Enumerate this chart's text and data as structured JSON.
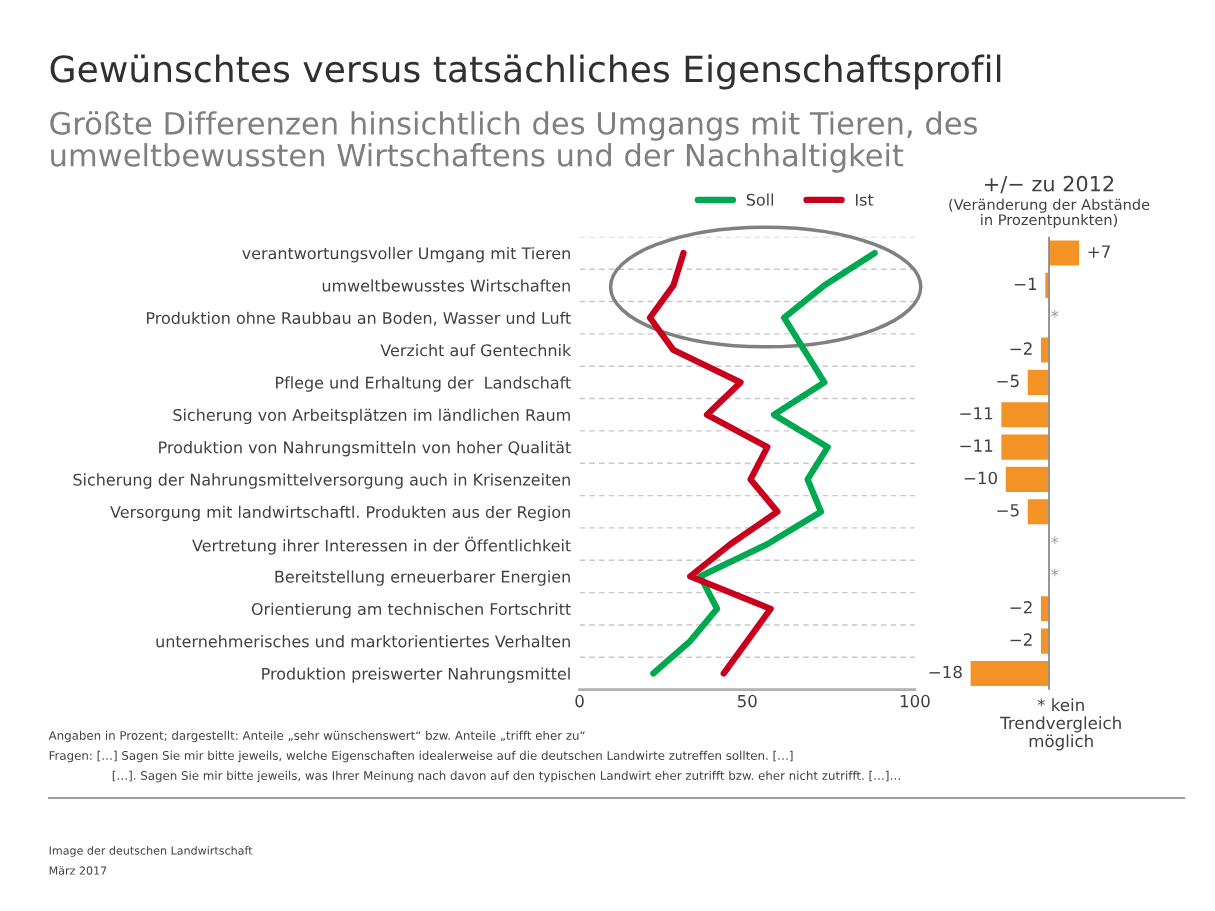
{
  "chart_data": [
    {
      "type": "line",
      "orientation": "horizontal",
      "title": "Gewünschtes versus tatsächliches Eigenschaftsprofil",
      "subtitle": "Größte Differenzen hinsichtlich des Umgangs mit Tieren, des umweltbewussten Wirtschaftens und der Nachhaltigkeit",
      "categories": [
        "verantwortungsvoller Umgang mit Tieren",
        "umweltbewusstes Wirtschaften",
        "Produktion ohne Raubbau an Boden, Wasser und Luft",
        "Verzicht auf Gentechnik",
        "Pflege und Erhaltung der  Landschaft",
        "Sicherung von Arbeitsplätzen im ländlichen Raum",
        "Produktion von Nahrungsmitteln von hoher Qualität",
        "Sicherung der Nahrungsmittelversorgung auch in Krisenzeiten",
        "Versorgung mit landwirtschaftl. Produkten aus der Region",
        "Vertretung ihrer Interessen in der Öffentlichkeit",
        "Bereitstellung erneuerbarer Energien",
        "Orientierung am technischen Fortschritt",
        "unternehmerisches und marktorientiertes Verhalten",
        "Produktion preiswerter Nahrungsmittel"
      ],
      "series": [
        {
          "name": "Soll",
          "color": "#00a94f",
          "values": [
            88,
            73,
            61,
            67,
            73,
            58,
            74,
            68,
            72,
            56,
            36,
            41,
            33,
            22
          ]
        },
        {
          "name": "Ist",
          "color": "#c8001e",
          "values": [
            31,
            28,
            21,
            28,
            48,
            38,
            56,
            51,
            59,
            45,
            33,
            57,
            50,
            43
          ]
        }
      ],
      "xlim": [
        0,
        100
      ],
      "xticks": [
        0,
        50,
        100
      ],
      "grid": "y",
      "legend": "top",
      "annotations": [
        "Angaben in Prozent; dargestellt: Anteile „sehr wünschenswert“ bzw. Anteile „trifft eher zu“",
        "Fragen: […] Sagen Sie mir bitte jeweils, welche Eigenschaften idealerweise auf die deutschen Landwirte zutreffen sollten. […]",
        "[…]. Sagen Sie mir bitte jeweils, was Ihrer Meinung nach davon auf den typischen Landwirt eher zutrifft bzw. eher nicht zutrifft. […]…",
        "Image der deutschen Landwirtschaft",
        "März 2017"
      ]
    },
    {
      "type": "bar",
      "orientation": "horizontal",
      "title": "+/− zu 2012",
      "subtitle": "(Veränderung der Abstände\nin Prozentpunkten)",
      "categories": [
        null,
        null,
        null,
        null,
        null,
        null,
        null,
        null,
        null,
        null,
        null,
        null,
        null,
        null
      ],
      "values": [
        7,
        -1,
        null,
        -2,
        -5,
        -11,
        -11,
        -10,
        -5,
        null,
        null,
        -2,
        -2,
        -18
      ],
      "value_labels": [
        "+7",
        "−1",
        "*",
        "−2",
        "−5",
        "−11",
        "−11",
        "−10",
        "−5",
        "*",
        "*",
        "−2",
        "−2",
        "−18"
      ],
      "color": "#f39325",
      "ref_lines": [
        {
          "axis": "x",
          "value": 0,
          "color": "#808080"
        }
      ],
      "annotations": [
        "* kein\nTrendvergleich\nmöglich"
      ]
    }
  ]
}
